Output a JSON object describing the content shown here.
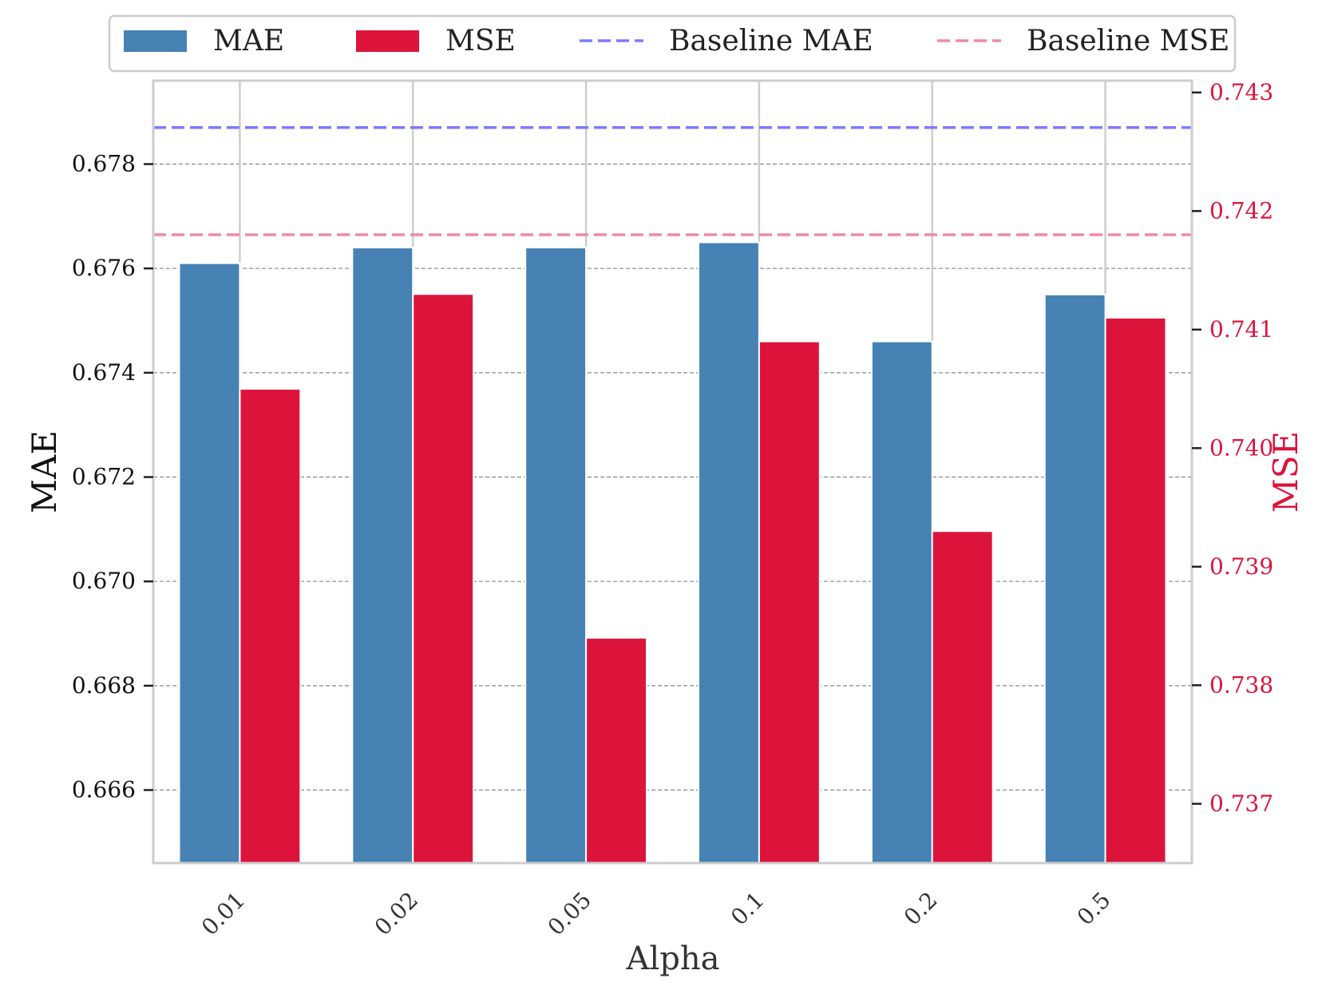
{
  "chart_data": {
    "type": "bar",
    "title": "",
    "xlabel": "Alpha",
    "ylabel": "MAE",
    "y2label": "MSE",
    "categories": [
      "0.01",
      "0.02",
      "0.05",
      "0.1",
      "0.2",
      "0.5"
    ],
    "series": [
      {
        "name": "MAE",
        "axis": "left",
        "color": "#4682b4",
        "values": [
          0.6761,
          0.6764,
          0.6764,
          0.6765,
          0.6746,
          0.6755
        ]
      },
      {
        "name": "MSE",
        "axis": "right",
        "color": "#dc143c",
        "values": [
          0.7405,
          0.7413,
          0.7384,
          0.7409,
          0.7393,
          0.7411
        ]
      }
    ],
    "baselines": [
      {
        "name": "Baseline MAE",
        "axis": "left",
        "value": 0.6787,
        "color": "#7b7bff",
        "style": "dashed"
      },
      {
        "name": "Baseline MSE",
        "axis": "right",
        "value": 0.7418,
        "color": "#ef8aa0",
        "style": "dashed"
      }
    ],
    "ylim": [
      0.6646,
      0.6796
    ],
    "y2lim": [
      0.7365,
      0.7431
    ],
    "yticks": [
      "0.666",
      "0.668",
      "0.670",
      "0.672",
      "0.674",
      "0.676",
      "0.678"
    ],
    "y2ticks": [
      "0.737",
      "0.738",
      "0.739",
      "0.740",
      "0.741",
      "0.742",
      "0.743"
    ],
    "grid": true,
    "legend": {
      "position": "top-center",
      "entries": [
        "MAE",
        "MSE",
        "Baseline MAE",
        "Baseline MSE"
      ]
    },
    "colors": {
      "right_axis": "#dc143c",
      "frame": "#cccccc",
      "grid": "#888888"
    }
  }
}
